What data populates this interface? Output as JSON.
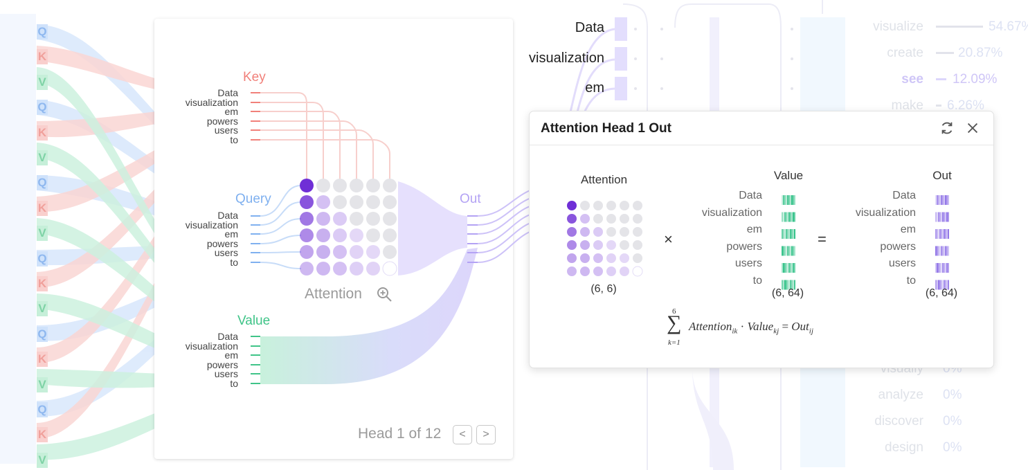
{
  "qkv_sidebar": [
    "Q",
    "K",
    "V",
    "Q",
    "K",
    "V",
    "Q",
    "K",
    "V",
    "Q",
    "K",
    "V",
    "Q",
    "K",
    "V",
    "Q",
    "K",
    "V"
  ],
  "head_card": {
    "key_title": "Key",
    "query_title": "Query",
    "value_title": "Value",
    "out_title": "Out",
    "attention_label": "Attention",
    "tokens": [
      "Data",
      "visualization",
      "em",
      "powers",
      "users",
      "to"
    ],
    "pager": {
      "text": "Head 1 of 12",
      "prev": "<",
      "next": ">"
    }
  },
  "background_tokens": [
    "Data",
    "visualization",
    "em"
  ],
  "predictions": [
    {
      "word": "visualize",
      "pct": "54.67%"
    },
    {
      "word": "create",
      "pct": "20.87%"
    },
    {
      "word": "see",
      "pct": "12.09%"
    },
    {
      "word": "make",
      "pct": "6.26%"
    },
    {
      "word": "visually",
      "pct": "0%"
    },
    {
      "word": "analyze",
      "pct": "0%"
    },
    {
      "word": "discover",
      "pct": "0%"
    },
    {
      "word": "design",
      "pct": "0%"
    }
  ],
  "popup": {
    "title": "Attention Head 1 Out",
    "attention_label": "Attention",
    "value_label": "Value",
    "out_label": "Out",
    "tokens": [
      "Data",
      "visualization",
      "em",
      "powers",
      "users",
      "to"
    ],
    "attention_shape": "(6, 6)",
    "value_shape": "(6, 64)",
    "out_shape": "(6, 64)",
    "times": "×",
    "equals": "=",
    "formula": {
      "sum_upper": "6",
      "sum_lower": "k=1",
      "body": "Attention",
      "body_sub": "ik",
      "dot": "·",
      "value": "Value",
      "value_sub": "kj",
      "eq": "=",
      "out": "Out",
      "out_sub": "ij"
    }
  },
  "colors": {
    "key": "#f1807a",
    "query": "#7fb0ef",
    "value": "#3fc488",
    "out": "#b3a2f4",
    "attention_dark": "#6f2fd6"
  },
  "icons": [
    "zoom-in-icon",
    "refresh-icon",
    "close-icon",
    "chevron-left-icon",
    "chevron-right-icon"
  ]
}
